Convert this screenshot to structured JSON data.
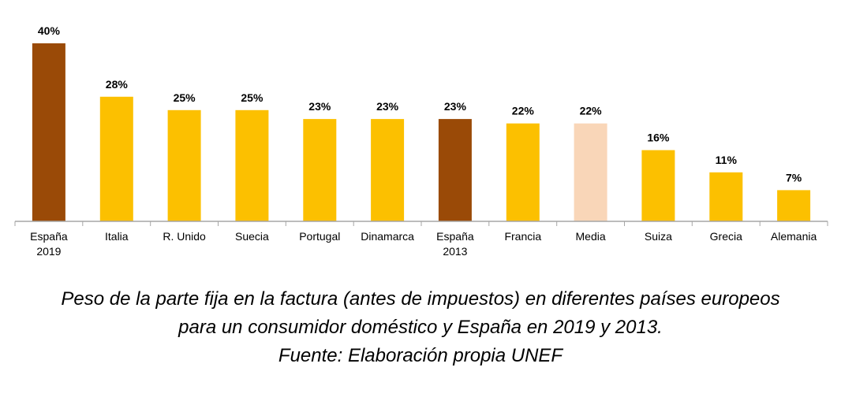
{
  "chart_data": {
    "type": "bar",
    "categories": [
      [
        "España",
        "2019"
      ],
      [
        "Italia"
      ],
      [
        "R. Unido"
      ],
      [
        "Suecia"
      ],
      [
        "Portugal"
      ],
      [
        "Dinamarca"
      ],
      [
        "España",
        "2013"
      ],
      [
        "Francia"
      ],
      [
        "Media"
      ],
      [
        "Suiza"
      ],
      [
        "Grecia"
      ],
      [
        "Alemania"
      ]
    ],
    "values": [
      40,
      28,
      25,
      25,
      23,
      23,
      23,
      22,
      22,
      16,
      11,
      7
    ],
    "value_labels": [
      "40%",
      "28%",
      "25%",
      "25%",
      "23%",
      "23%",
      "23%",
      "22%",
      "22%",
      "16%",
      "11%",
      "7%"
    ],
    "bar_colors": [
      "#9a4a07",
      "#fcc000",
      "#fcc000",
      "#fcc000",
      "#fcc000",
      "#fcc000",
      "#9a4a07",
      "#fcc000",
      "#f9d6b8",
      "#fcc000",
      "#fcc000",
      "#fcc000"
    ],
    "ylim": [
      0,
      40
    ],
    "title": "",
    "xlabel": "",
    "ylabel": ""
  },
  "colors": {
    "axis": "#a6a6a6"
  },
  "caption": {
    "line1": "Peso de la parte fija en la factura (antes de impuestos) en diferentes países europeos",
    "line2": "para un consumidor doméstico y España en 2019 y 2013.",
    "line3": "Fuente: Elaboración propia UNEF"
  }
}
